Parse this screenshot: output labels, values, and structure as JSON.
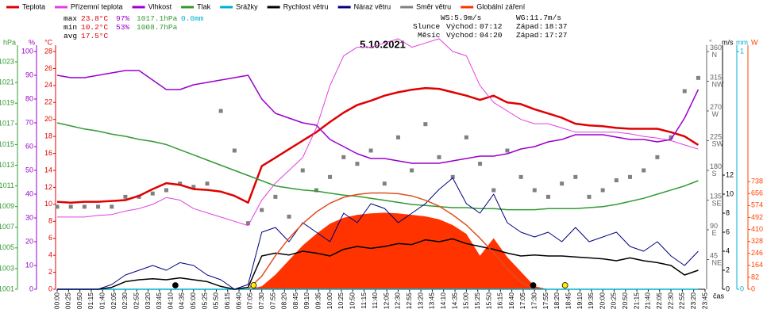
{
  "chart_data": {
    "type": "line",
    "title": "5.10.2021",
    "xlim": [
      "00:00",
      "23:45"
    ],
    "xticks": [
      "00:00",
      "00:25",
      "00:50",
      "01:15",
      "01:40",
      "02:05",
      "02:30",
      "02:55",
      "03:20",
      "03:45",
      "04:10",
      "04:35",
      "05:00",
      "05:25",
      "05:50",
      "06:15",
      "06:40",
      "07:05",
      "07:30",
      "07:55",
      "08:20",
      "08:45",
      "09:10",
      "09:35",
      "10:00",
      "10:25",
      "10:50",
      "11:15",
      "11:40",
      "12:05",
      "12:30",
      "12:55",
      "13:20",
      "13:45",
      "14:10",
      "14:35",
      "15:00",
      "15:25",
      "15:50",
      "16:15",
      "16:40",
      "17:05",
      "17:30",
      "17:55",
      "18:20",
      "18:45",
      "19:10",
      "19:35",
      "20:00",
      "20:25",
      "20:50",
      "21:15",
      "21:40",
      "22:05",
      "22:30",
      "22:55",
      "23:20",
      "23:45"
    ],
    "xlabel": "čas",
    "x": [
      "00:00",
      "00:30",
      "01:00",
      "01:30",
      "02:00",
      "02:30",
      "03:00",
      "03:30",
      "04:00",
      "04:30",
      "05:00",
      "05:30",
      "06:00",
      "06:30",
      "07:00",
      "07:30",
      "08:00",
      "08:30",
      "09:00",
      "09:30",
      "10:00",
      "10:30",
      "11:00",
      "11:30",
      "12:00",
      "12:30",
      "13:00",
      "13:30",
      "14:00",
      "14:30",
      "15:00",
      "15:30",
      "16:00",
      "16:30",
      "17:00",
      "17:30",
      "18:00",
      "18:30",
      "19:00",
      "19:30",
      "20:00",
      "20:30",
      "21:00",
      "21:30",
      "22:00",
      "22:30",
      "23:00",
      "23:30"
    ],
    "axes": [
      {
        "unit": "hPa",
        "color": "#339933",
        "side": "left",
        "ylim": [
          1001,
          1024
        ],
        "yticks": [
          1001,
          1003,
          1005,
          1007,
          1009,
          1011,
          1013,
          1015,
          1017,
          1019,
          1021,
          1023
        ]
      },
      {
        "unit": "%",
        "color": "#9900cc",
        "side": "left",
        "ylim": [
          0,
          100
        ],
        "yticks": [
          0,
          10,
          20,
          30,
          40,
          50,
          60,
          70,
          80,
          90,
          100
        ]
      },
      {
        "unit": "°C",
        "color": "#e00000",
        "side": "left",
        "ylim": [
          0,
          28
        ],
        "yticks": [
          0,
          2,
          4,
          6,
          8,
          10,
          12,
          14,
          16,
          18,
          20,
          22,
          24,
          26,
          28
        ]
      },
      {
        "unit": "°",
        "color": "#666666",
        "side": "right",
        "ylim": [
          0,
          360
        ],
        "yticks": [
          {
            "value": 45,
            "label": "45 NE"
          },
          {
            "value": 90,
            "label": "90 E"
          },
          {
            "value": 135,
            "label": "135 SE"
          },
          {
            "value": 180,
            "label": "180 S"
          },
          {
            "value": 225,
            "label": "225 SW"
          },
          {
            "value": 270,
            "label": "270 W"
          },
          {
            "value": 315,
            "label": "315 NW"
          },
          {
            "value": 360,
            "label": "360 N"
          }
        ]
      },
      {
        "unit": "m/s",
        "color": "#000000",
        "side": "right",
        "ylim": [
          0,
          25
        ],
        "yticks": [
          0,
          2,
          4,
          6,
          8,
          10,
          12
        ]
      },
      {
        "unit": "mm",
        "color": "#00b0d0",
        "side": "right",
        "ylim": [
          0,
          1
        ],
        "yticks": [
          0,
          1
        ]
      },
      {
        "unit": "W",
        "color": "#ff4400",
        "side": "right",
        "ylim": [
          0,
          1630
        ],
        "yticks": [
          0,
          82,
          164,
          246,
          328,
          410,
          492,
          574,
          656,
          738
        ]
      }
    ],
    "series": [
      {
        "name": "Teplota",
        "color": "#e00000",
        "kind": "line",
        "width": 2.5,
        "axis": 2,
        "values": [
          10.3,
          10.2,
          10.3,
          10.3,
          10.4,
          10.5,
          11,
          11.8,
          12.5,
          12.3,
          11.8,
          11.7,
          11.5,
          11,
          10.2,
          14.5,
          15.5,
          16.5,
          17.5,
          18.5,
          19.7,
          20.8,
          21.7,
          22.2,
          22.8,
          23.2,
          23.5,
          23.7,
          23.6,
          23.2,
          22.8,
          22.3,
          22.8,
          22,
          21.8,
          21.2,
          20.7,
          20.2,
          19.5,
          19.3,
          19.2,
          19,
          18.9,
          18.9,
          18.9,
          18.5,
          18,
          17
        ]
      },
      {
        "name": "Přízemní teplota",
        "color": "#e040e0",
        "kind": "line",
        "width": 1,
        "axis": 2,
        "values": [
          8.5,
          8.5,
          8.5,
          8.7,
          8.8,
          9.2,
          9.5,
          10,
          10.8,
          10.5,
          9.5,
          9,
          8.5,
          8,
          7.5,
          10.5,
          12.5,
          14,
          15.5,
          19,
          24,
          27.5,
          28.5,
          28.5,
          29,
          29.5,
          28.5,
          29,
          29.5,
          28,
          27.5,
          24,
          22,
          21,
          20,
          19.5,
          19.5,
          19,
          18.5,
          18.5,
          18.5,
          18.5,
          18.3,
          18,
          17.8,
          17.5,
          17,
          16.5
        ]
      },
      {
        "name": "Vlhkost",
        "color": "#9900cc",
        "kind": "line",
        "width": 1.5,
        "axis": 1,
        "values": [
          90,
          89,
          89,
          90,
          91,
          92,
          92,
          88,
          84,
          84,
          86,
          87,
          88,
          89,
          90,
          80,
          74,
          72,
          70,
          69,
          63,
          60,
          57,
          55,
          55,
          54,
          53,
          53,
          53,
          54,
          55,
          56,
          56,
          57,
          59,
          60,
          62,
          63,
          65,
          65,
          65,
          64,
          63,
          63,
          62,
          63,
          72,
          84
        ]
      },
      {
        "name": "Tlak",
        "color": "#339933",
        "kind": "line",
        "width": 1.5,
        "axis": 0,
        "values": [
          1017.1,
          1016.8,
          1016.5,
          1016.3,
          1016,
          1015.8,
          1015.5,
          1015.3,
          1015,
          1014.5,
          1014,
          1013.5,
          1013,
          1012.5,
          1012,
          1011.5,
          1011,
          1010.8,
          1010.6,
          1010.5,
          1010.3,
          1010.1,
          1010,
          1009.8,
          1009.6,
          1009.4,
          1009.2,
          1009.1,
          1009,
          1008.9,
          1008.9,
          1008.8,
          1008.8,
          1008.7,
          1008.7,
          1008.7,
          1008.8,
          1008.8,
          1008.8,
          1008.9,
          1009,
          1009.2,
          1009.5,
          1009.8,
          1010.2,
          1010.6,
          1011,
          1011.5
        ]
      },
      {
        "name": "Srážky",
        "color": "#00b0d0",
        "kind": "line",
        "width": 1.5,
        "axis": 5,
        "values": [
          0,
          0,
          0,
          0,
          0,
          0,
          0,
          0,
          0,
          0,
          0,
          0,
          0,
          0,
          0,
          0,
          0,
          0,
          0,
          0,
          0,
          0,
          0,
          0,
          0,
          0,
          0,
          0,
          0,
          0,
          0,
          0,
          0,
          0,
          0,
          0,
          0,
          0,
          0,
          0,
          0,
          0,
          0,
          0,
          0,
          0,
          0,
          0
        ]
      },
      {
        "name": "Rychlost větru",
        "color": "#000000",
        "kind": "line",
        "width": 1.5,
        "axis": 4,
        "values": [
          0,
          0,
          0,
          0,
          0.2,
          0.8,
          1,
          1.1,
          1,
          1.2,
          1,
          0.8,
          0.3,
          0,
          0.2,
          3.5,
          3.8,
          3.6,
          4,
          3.8,
          3.5,
          4.2,
          4.5,
          4.3,
          4.5,
          4.8,
          4.7,
          5.2,
          5,
          5.3,
          4.8,
          4.5,
          4.2,
          3.8,
          3.5,
          3.6,
          3.5,
          3.5,
          3.4,
          3.3,
          3.2,
          3,
          3.3,
          3,
          2.8,
          2.5,
          1.5,
          2
        ]
      },
      {
        "name": "Náraz větru",
        "color": "#000080",
        "kind": "line",
        "width": 1,
        "axis": 4,
        "values": [
          0,
          0,
          0,
          0,
          0.5,
          1.5,
          2,
          2.5,
          2,
          2.8,
          2.5,
          1.5,
          1,
          0,
          0.5,
          6,
          6.5,
          5,
          7,
          6,
          5,
          8,
          7,
          9,
          8.5,
          7,
          8,
          9,
          10.5,
          11.7,
          9,
          8,
          10,
          7,
          6,
          5.5,
          6,
          5,
          6.5,
          5,
          5.5,
          6,
          4.5,
          4,
          5,
          3.5,
          2.5,
          4
        ]
      },
      {
        "name": "Směr větru",
        "color": "#808080",
        "kind": "scatter",
        "axis": 3,
        "values": [
          125,
          125,
          125,
          125,
          125,
          140,
          140,
          145,
          150,
          160,
          155,
          160,
          270,
          210,
          100,
          120,
          140,
          110,
          180,
          150,
          170,
          200,
          190,
          210,
          160,
          230,
          180,
          250,
          200,
          170,
          230,
          190,
          150,
          210,
          170,
          150,
          140,
          160,
          170,
          140,
          150,
          165,
          170,
          180,
          200,
          230,
          300,
          320
        ]
      },
      {
        "name": "Globální záření",
        "color": "#ff3300",
        "kind": "area",
        "axis": 6,
        "values": [
          0,
          0,
          0,
          0,
          0,
          0,
          0,
          0,
          0,
          0,
          0,
          0,
          0,
          0,
          0,
          20,
          100,
          200,
          300,
          380,
          450,
          490,
          510,
          520,
          525,
          520,
          510,
          500,
          480,
          440,
          380,
          230,
          350,
          220,
          120,
          20,
          0,
          0,
          0,
          0,
          0,
          0,
          0,
          0,
          0,
          0,
          0,
          0
        ]
      },
      {
        "color": "#e05020",
        "kind": "line",
        "width": 1.5,
        "axis": 6,
        "values": [
          null,
          null,
          null,
          null,
          null,
          null,
          null,
          null,
          null,
          null,
          null,
          null,
          null,
          null,
          0,
          90,
          230,
          350,
          450,
          530,
          590,
          630,
          650,
          660,
          660,
          655,
          640,
          610,
          570,
          510,
          440,
          350,
          250,
          140,
          50,
          0,
          null,
          null,
          null,
          null,
          null,
          null,
          null,
          null,
          null,
          null,
          null,
          null
        ]
      }
    ],
    "stats": [
      {
        "label": "max",
        "temp": "23.8°C",
        "hum": "97%",
        "press": "1017.1hPa",
        "rain": "0.0mm"
      },
      {
        "label": "min",
        "temp": "10.2°C",
        "hum": "53%",
        "press": "1008.7hPa"
      },
      {
        "label": "avg",
        "temp": "17.5°C"
      }
    ],
    "wind_stats": [
      "WS:5.9m/s",
      "WG:11.7m/s"
    ],
    "sun": {
      "label": "Slunce",
      "rise_label": "Východ:",
      "rise": "07:12",
      "set_label": "Západ:",
      "set": "18:37",
      "color": "#ffee00"
    },
    "moon": {
      "label": "Měsíc",
      "rise_label": "Východ:",
      "rise": "04:20",
      "set_label": "Západ:",
      "set": "17:27",
      "color": "#000000"
    }
  }
}
